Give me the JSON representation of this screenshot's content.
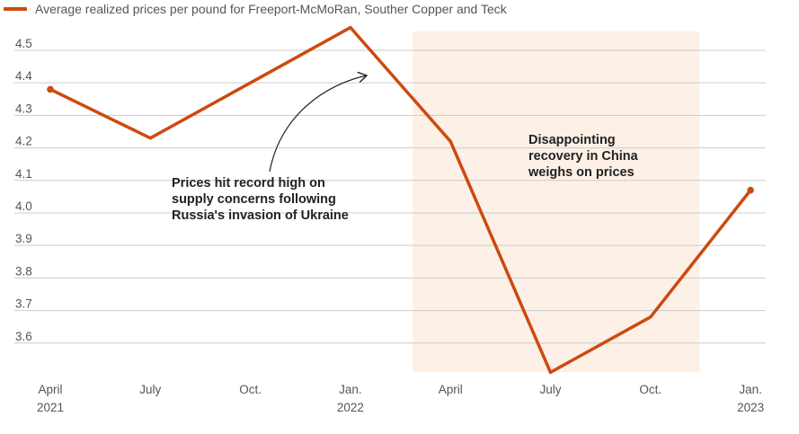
{
  "chart_data": {
    "type": "line",
    "legend": {
      "label": "Average realized prices per pound for  Freeport-McMoRan, Souther Copper and Teck",
      "placement": "top-left"
    },
    "x_ticks": [
      {
        "line1": "April",
        "line2": "2021"
      },
      {
        "line1": "July",
        "line2": ""
      },
      {
        "line1": "Oct.",
        "line2": ""
      },
      {
        "line1": "Jan.",
        "line2": "2022"
      },
      {
        "line1": "April",
        "line2": ""
      },
      {
        "line1": "July",
        "line2": ""
      },
      {
        "line1": "Oct.",
        "line2": ""
      },
      {
        "line1": "Jan.",
        "line2": "2023"
      }
    ],
    "y_ticks": [
      "3.6",
      "3.7",
      "3.8",
      "3.9",
      "4.0",
      "4.1",
      "4.2",
      "4.3",
      "4.4",
      "4.5"
    ],
    "ylim": [
      3.5,
      4.58
    ],
    "grid": true,
    "series": [
      {
        "values": [
          4.38,
          4.23,
          4.4,
          4.57,
          4.22,
          3.51,
          3.68,
          4.07
        ]
      }
    ],
    "highlight_range": [
      4,
      6.5
    ],
    "annotations": [
      {
        "lines": [
          "Prices hit record high on",
          "supply concerns following",
          "Russia's invasion of Ukraine"
        ]
      },
      {
        "lines": [
          "Disappointing",
          "recovery in China",
          "weighs on prices"
        ]
      }
    ],
    "colors": {
      "line": "#cc4a10",
      "shade": "#fdf0e6",
      "grid": "#cccccc",
      "text": "#555555"
    }
  }
}
